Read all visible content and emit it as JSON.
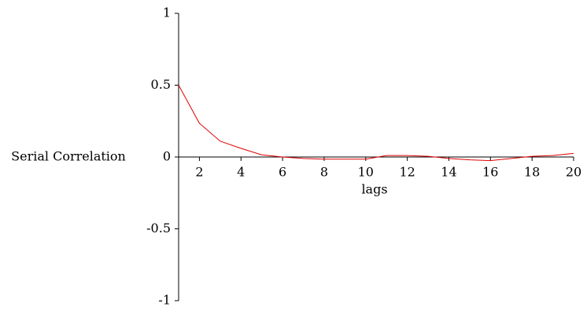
{
  "chart_data": {
    "type": "line",
    "x_label": "lags",
    "y_label": "Serial Correlation",
    "x": [
      1,
      2,
      3,
      4,
      5,
      6,
      7,
      8,
      9,
      10,
      11,
      12,
      13,
      14,
      15,
      16,
      17,
      18,
      19,
      20
    ],
    "series": [
      {
        "color": "#e00000",
        "values": [
          0.5,
          0.235,
          0.11,
          0.06,
          0.015,
          0,
          -0.01,
          -0.015,
          -0.015,
          -0.015,
          0.01,
          0.01,
          0.005,
          -0.01,
          -0.02,
          -0.025,
          -0.01,
          0.005,
          0.01,
          0.025
        ]
      }
    ],
    "xlim": [
      1,
      20
    ],
    "xticks": [
      2,
      4,
      6,
      8,
      10,
      12,
      14,
      16,
      18,
      20
    ],
    "ylim": [
      -1,
      1
    ],
    "yticks": [
      1,
      0.5,
      0,
      -0.5,
      -1
    ]
  }
}
